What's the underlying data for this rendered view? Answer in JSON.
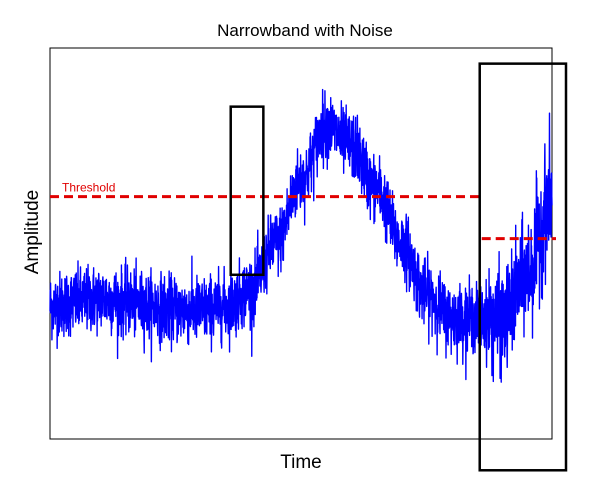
{
  "chart_data": {
    "type": "line",
    "title": "Narrowband with Noise",
    "xlabel": "Time",
    "ylabel": "Amplitude",
    "ticks_shown": false,
    "grid": false,
    "xlim": [
      0,
      1000
    ],
    "ylim": [
      0,
      100
    ],
    "series": [
      {
        "color": "#0000ff",
        "noisy": true,
        "x": [
          0,
          50,
          100,
          150,
          200,
          250,
          300,
          350,
          400,
          450,
          500,
          550,
          600,
          650,
          700,
          750,
          800,
          850,
          900,
          950,
          1000
        ],
        "y": [
          34,
          35,
          36,
          35,
          34,
          33,
          33,
          34,
          38,
          50,
          66,
          80,
          75,
          64,
          50,
          37,
          31,
          31,
          30,
          42,
          62
        ]
      }
    ],
    "threshold": {
      "label": "Threshold",
      "color": "#e00000",
      "line_style": "dashed",
      "y": 62
    },
    "annotations": [
      {
        "kind": "rectangle",
        "x_range": [
          360,
          425
        ],
        "y_range": [
          42,
          85
        ]
      },
      {
        "kind": "rectangle",
        "x_range": [
          860,
          1000
        ],
        "y_range": [
          -8,
          96
        ]
      }
    ]
  }
}
